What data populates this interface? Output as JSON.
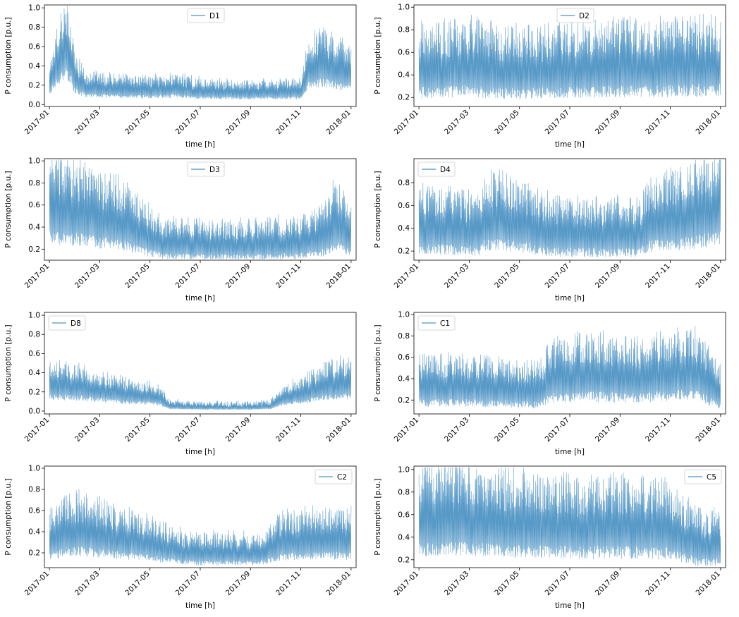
{
  "chart_data": [
    {
      "type": "line",
      "title": "",
      "xlabel": "time [h]",
      "ylabel": "P consumption [p.u.]",
      "x_ticks": [
        "2017-01",
        "2017-03",
        "2017-05",
        "2017-07",
        "2017-09",
        "2017-11",
        "2018-01"
      ],
      "xlim_months": [
        -0.2,
        12.2
      ],
      "y_ticks": [
        0.0,
        0.2,
        0.4,
        0.6,
        0.8,
        1.0
      ],
      "ylim": [
        -0.02,
        1.03
      ],
      "legend": "upper center",
      "series": [
        {
          "name": "D1",
          "color": "#1f77b4",
          "knots": [
            [
              0,
              0.2
            ],
            [
              0.3,
              0.42
            ],
            [
              0.6,
              0.55
            ],
            [
              0.8,
              0.5
            ],
            [
              1.0,
              0.25
            ],
            [
              1.5,
              0.16
            ],
            [
              3.0,
              0.14
            ],
            [
              4.0,
              0.14
            ],
            [
              5.0,
              0.15
            ],
            [
              6.0,
              0.12
            ],
            [
              8.0,
              0.11
            ],
            [
              10.0,
              0.12
            ],
            [
              10.3,
              0.35
            ],
            [
              10.8,
              0.4
            ],
            [
              11.3,
              0.35
            ],
            [
              12.0,
              0.3
            ]
          ]
        }
      ]
    },
    {
      "type": "line",
      "title": "",
      "xlabel": "time [h]",
      "ylabel": "P consumption [p.u.]",
      "x_ticks": [
        "2017-01",
        "2017-03",
        "2017-05",
        "2017-07",
        "2017-09",
        "2017-11",
        "2018-01"
      ],
      "xlim_months": [
        -0.2,
        12.2
      ],
      "y_ticks": [
        0.2,
        0.4,
        0.6,
        0.8,
        1.0
      ],
      "ylim": [
        0.12,
        1.02
      ],
      "legend": "upper center",
      "series": [
        {
          "name": "D2",
          "color": "#1f77b4",
          "knots": [
            [
              0,
              0.42
            ],
            [
              2.0,
              0.44
            ],
            [
              4.0,
              0.4
            ],
            [
              6.0,
              0.42
            ],
            [
              8.0,
              0.44
            ],
            [
              10.0,
              0.44
            ],
            [
              12.0,
              0.46
            ]
          ]
        }
      ]
    },
    {
      "type": "line",
      "title": "",
      "xlabel": "time [h]",
      "ylabel": "P consumption [p.u.]",
      "x_ticks": [
        "2017-01",
        "2017-03",
        "2017-05",
        "2017-07",
        "2017-09",
        "2017-11",
        "2018-01"
      ],
      "xlim_months": [
        -0.2,
        12.2
      ],
      "y_ticks": [
        0.2,
        0.4,
        0.6,
        0.8,
        1.0
      ],
      "ylim": [
        0.1,
        1.02
      ],
      "legend": "upper center",
      "series": [
        {
          "name": "D3",
          "color": "#1f77b4",
          "knots": [
            [
              0,
              0.55
            ],
            [
              1.0,
              0.5
            ],
            [
              2.0,
              0.45
            ],
            [
              3.0,
              0.4
            ],
            [
              3.8,
              0.3
            ],
            [
              4.5,
              0.24
            ],
            [
              6.0,
              0.22
            ],
            [
              8.0,
              0.22
            ],
            [
              10.0,
              0.24
            ],
            [
              11.0,
              0.3
            ],
            [
              11.4,
              0.42
            ],
            [
              12.0,
              0.3
            ]
          ]
        }
      ]
    },
    {
      "type": "line",
      "title": "",
      "xlabel": "time [h]",
      "ylabel": "P consumption [p.u.]",
      "x_ticks": [
        "2017-01",
        "2017-03",
        "2017-05",
        "2017-07",
        "2017-09",
        "2017-11",
        "2018-01"
      ],
      "xlim_months": [
        -0.2,
        12.2
      ],
      "y_ticks": [
        0.2,
        0.4,
        0.6,
        0.8
      ],
      "ylim": [
        0.12,
        1.01
      ],
      "legend": "upper left",
      "series": [
        {
          "name": "D4",
          "color": "#1f77b4",
          "knots": [
            [
              0,
              0.38
            ],
            [
              2.4,
              0.35
            ],
            [
              2.6,
              0.45
            ],
            [
              4.0,
              0.42
            ],
            [
              5.0,
              0.34
            ],
            [
              7.0,
              0.32
            ],
            [
              8.8,
              0.33
            ],
            [
              9.2,
              0.42
            ],
            [
              11.0,
              0.48
            ],
            [
              12.0,
              0.55
            ]
          ]
        }
      ]
    },
    {
      "type": "line",
      "title": "",
      "xlabel": "time [h]",
      "ylabel": "P consumption [p.u.]",
      "x_ticks": [
        "2017-01",
        "2017-03",
        "2017-05",
        "2017-07",
        "2017-09",
        "2017-11",
        "2018-01"
      ],
      "xlim_months": [
        -0.2,
        12.2
      ],
      "y_ticks": [
        0.0,
        0.2,
        0.4,
        0.6,
        0.8,
        1.0
      ],
      "ylim": [
        -0.03,
        1.03
      ],
      "legend": "upper left",
      "series": [
        {
          "name": "D8",
          "color": "#1f77b4",
          "knots": [
            [
              0,
              0.25
            ],
            [
              1.0,
              0.24
            ],
            [
              2.0,
              0.2
            ],
            [
              3.0,
              0.16
            ],
            [
              4.0,
              0.14
            ],
            [
              4.4,
              0.12
            ],
            [
              4.8,
              0.04
            ],
            [
              6.0,
              0.03
            ],
            [
              8.0,
              0.03
            ],
            [
              8.8,
              0.04
            ],
            [
              9.3,
              0.12
            ],
            [
              10.5,
              0.2
            ],
            [
              11.5,
              0.28
            ],
            [
              12.0,
              0.26
            ]
          ]
        }
      ]
    },
    {
      "type": "line",
      "title": "",
      "xlabel": "time [h]",
      "ylabel": "P consumption [p.u.]",
      "x_ticks": [
        "2017-01",
        "2017-03",
        "2017-05",
        "2017-07",
        "2017-09",
        "2017-11",
        "2018-01"
      ],
      "xlim_months": [
        -0.2,
        12.2
      ],
      "y_ticks": [
        0.2,
        0.4,
        0.6,
        0.8,
        1.0
      ],
      "ylim": [
        0.07,
        1.02
      ],
      "legend": "upper left",
      "series": [
        {
          "name": "C1",
          "color": "#1f77b4",
          "knots": [
            [
              0,
              0.3
            ],
            [
              2.0,
              0.3
            ],
            [
              4.0,
              0.28
            ],
            [
              4.8,
              0.26
            ],
            [
              5.2,
              0.38
            ],
            [
              7.0,
              0.4
            ],
            [
              9.0,
              0.38
            ],
            [
              9.2,
              0.4
            ],
            [
              10.3,
              0.42
            ],
            [
              11.0,
              0.42
            ],
            [
              11.7,
              0.3
            ],
            [
              12.0,
              0.25
            ]
          ]
        }
      ]
    },
    {
      "type": "line",
      "title": "",
      "xlabel": "time [h]",
      "ylabel": "P consumption [p.u.]",
      "x_ticks": [
        "2017-01",
        "2017-03",
        "2017-05",
        "2017-07",
        "2017-09",
        "2017-11",
        "2018-01"
      ],
      "xlim_months": [
        -0.2,
        12.2
      ],
      "y_ticks": [
        0.2,
        0.4,
        0.6,
        0.8,
        1.0
      ],
      "ylim": [
        0.06,
        1.02
      ],
      "legend": "upper right",
      "series": [
        {
          "name": "C2",
          "color": "#1f77b4",
          "knots": [
            [
              0,
              0.3
            ],
            [
              1.0,
              0.38
            ],
            [
              2.0,
              0.34
            ],
            [
              3.0,
              0.3
            ],
            [
              4.0,
              0.26
            ],
            [
              5.0,
              0.2
            ],
            [
              6.0,
              0.18
            ],
            [
              7.0,
              0.18
            ],
            [
              8.0,
              0.18
            ],
            [
              8.6,
              0.2
            ],
            [
              9.2,
              0.28
            ],
            [
              10.5,
              0.3
            ],
            [
              12.0,
              0.3
            ]
          ]
        }
      ]
    },
    {
      "type": "line",
      "title": "",
      "xlabel": "time [h]",
      "ylabel": "P consumption [p.u.]",
      "x_ticks": [
        "2017-01",
        "2017-03",
        "2017-05",
        "2017-07",
        "2017-09",
        "2017-11",
        "2018-01"
      ],
      "xlim_months": [
        -0.2,
        12.2
      ],
      "y_ticks": [
        0.2,
        0.4,
        0.6,
        0.8,
        1.0
      ],
      "ylim": [
        0.13,
        1.03
      ],
      "legend": "upper right",
      "series": [
        {
          "name": "C5",
          "color": "#1f77b4",
          "knots": [
            [
              0,
              0.5
            ],
            [
              2.0,
              0.52
            ],
            [
              4.0,
              0.48
            ],
            [
              6.0,
              0.46
            ],
            [
              8.0,
              0.46
            ],
            [
              10.0,
              0.44
            ],
            [
              10.4,
              0.38
            ],
            [
              11.0,
              0.32
            ],
            [
              12.0,
              0.3
            ]
          ]
        }
      ]
    }
  ]
}
